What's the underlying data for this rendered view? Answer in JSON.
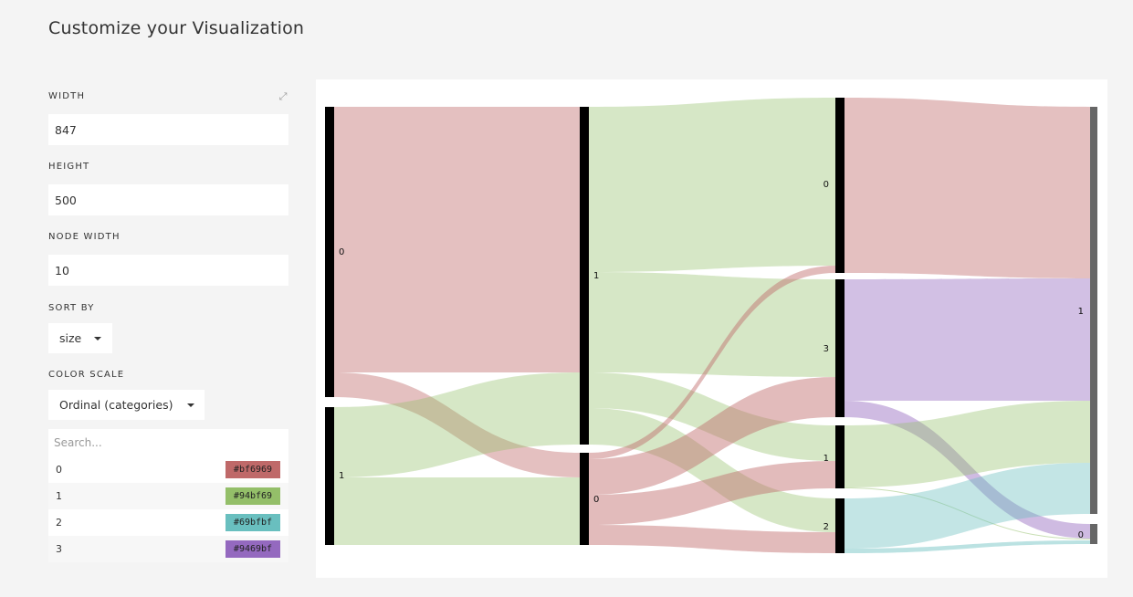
{
  "page_title": "Customize your Visualization",
  "width": {
    "label": "WIDTH",
    "value": "847"
  },
  "height": {
    "label": "HEIGHT",
    "value": "500"
  },
  "node_width": {
    "label": "NODE WIDTH",
    "value": "10"
  },
  "sort_by": {
    "label": "SORT BY",
    "value": "size"
  },
  "color_scale": {
    "label": "COLOR SCALE",
    "value": "Ordinal (categories)",
    "search_placeholder": "Search...",
    "items": [
      {
        "label": "0",
        "color": "#bf6969"
      },
      {
        "label": "1",
        "color": "#94bf69"
      },
      {
        "label": "2",
        "color": "#69bfbf"
      },
      {
        "label": "3",
        "color": "#9469bf"
      }
    ]
  },
  "chart": {
    "node_labels": {
      "c0_0": "0",
      "c0_1": "1",
      "c1_1": "1",
      "c1_0": "0",
      "c2_0": "0",
      "c2_3": "3",
      "c2_1": "1",
      "c2_2": "2",
      "c3_1": "1",
      "c3_0": "0"
    }
  }
}
